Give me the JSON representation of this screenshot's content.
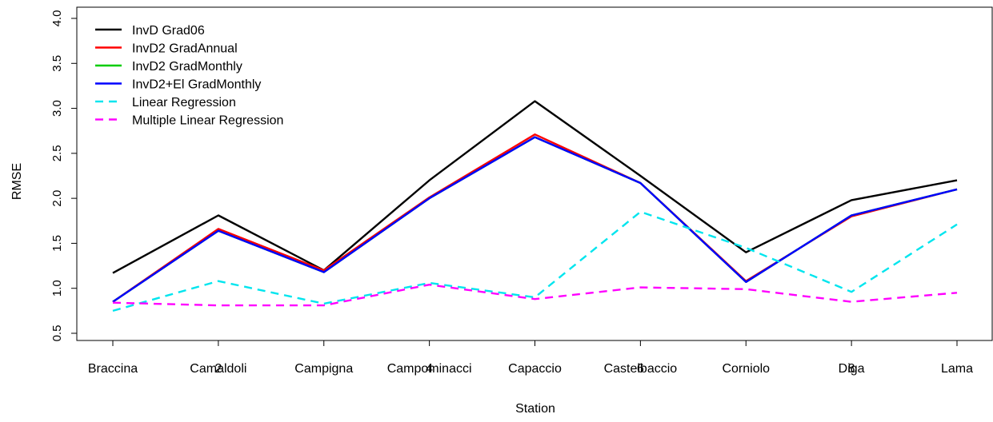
{
  "chart_data": {
    "type": "line",
    "xlabel": "Station",
    "ylabel": "RMSE",
    "ylim": [
      0.5,
      4.0
    ],
    "yticks": [
      "0.5",
      "1.0",
      "1.5",
      "2.0",
      "2.5",
      "3.0",
      "3.5",
      "4.0"
    ],
    "categories": [
      "Braccina",
      "Camaldoli",
      "Campigna",
      "Campominacci",
      "Capaccio",
      "Castelbaccio",
      "Corniolo",
      "Diga",
      "Lama"
    ],
    "overlay_tick_labels": [
      {
        "text": "2",
        "category_index": 1
      },
      {
        "text": "4",
        "category_index": 3
      },
      {
        "text": "6",
        "category_index": 5
      },
      {
        "text": "8",
        "category_index": 7
      }
    ],
    "legend_position": "top-left",
    "series": [
      {
        "name": "InvD Grad06",
        "color": "#000000",
        "dashed": false,
        "values": [
          1.17,
          1.81,
          1.2,
          2.2,
          3.08,
          2.25,
          1.4,
          1.98,
          2.2
        ]
      },
      {
        "name": "InvD2 GradAnnual",
        "color": "#ff0000",
        "dashed": false,
        "values": [
          0.85,
          1.66,
          1.2,
          2.01,
          2.71,
          2.17,
          1.08,
          1.8,
          2.1
        ]
      },
      {
        "name": "InvD2 GradMonthly",
        "color": "#00cd00",
        "dashed": false,
        "values": [
          0.85,
          1.64,
          1.18,
          2.0,
          2.68,
          2.17,
          1.07,
          1.81,
          2.1
        ]
      },
      {
        "name": "InvD2+El GradMonthly",
        "color": "#0000ff",
        "dashed": false,
        "values": [
          0.85,
          1.64,
          1.18,
          2.0,
          2.68,
          2.17,
          1.07,
          1.81,
          2.1
        ]
      },
      {
        "name": "Linear Regression",
        "color": "#00e5ee",
        "dashed": true,
        "values": [
          0.75,
          1.08,
          0.83,
          1.06,
          0.9,
          1.85,
          1.45,
          0.96,
          1.71
        ]
      },
      {
        "name": "Multiple Linear Regression",
        "color": "#ff00ff",
        "dashed": true,
        "values": [
          0.84,
          0.81,
          0.81,
          1.04,
          0.88,
          1.01,
          0.99,
          0.85,
          0.95
        ]
      }
    ]
  }
}
